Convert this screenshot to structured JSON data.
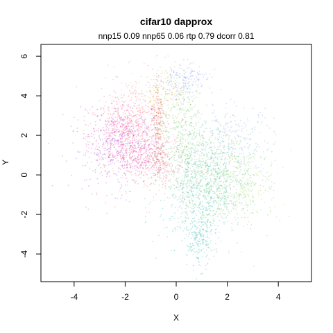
{
  "chart_data": {
    "type": "scatter",
    "title": "cifar10 dapprox",
    "subtitle": "nnp15 0.09 nnp65 0.06 rtp 0.79 dcorr 0.81",
    "xlabel": "X",
    "ylabel": "Y",
    "xlim": [
      -5.3,
      5.3
    ],
    "ylim": [
      -5.4,
      6.6
    ],
    "xticks": [
      -4,
      -2,
      0,
      2,
      4
    ],
    "yticks": [
      -4,
      -2,
      0,
      2,
      4,
      6
    ],
    "grid": false,
    "legend": "none",
    "series": [
      {
        "color": "#e8208a",
        "clusters": [
          {
            "cx": -2.0,
            "cy": 2.0,
            "sx": 0.7,
            "sy": 0.9,
            "n": 700
          },
          {
            "cx": -1.3,
            "cy": 0.8,
            "sx": 0.6,
            "sy": 0.5,
            "n": 250
          }
        ]
      },
      {
        "color": "#8a2be2",
        "clusters": [
          {
            "cx": -2.3,
            "cy": 1.2,
            "sx": 0.9,
            "sy": 1.0,
            "n": 300
          }
        ]
      },
      {
        "color": "#ff6a6a",
        "clusters": [
          {
            "cx": -1.5,
            "cy": 3.3,
            "sx": 0.8,
            "sy": 0.9,
            "n": 250
          },
          {
            "cx": -0.8,
            "cy": 0.5,
            "sx": 0.7,
            "sy": 1.0,
            "n": 200
          }
        ]
      },
      {
        "color": "#d04020",
        "clusters": [
          {
            "cx": -0.7,
            "cy": 2.8,
            "sx": 0.12,
            "sy": 1.3,
            "n": 180
          },
          {
            "cx": -0.7,
            "cy": 0.8,
            "sx": 0.2,
            "sy": 0.4,
            "n": 60
          }
        ]
      },
      {
        "color": "#c8a000",
        "clusters": [
          {
            "cx": -0.5,
            "cy": 4.2,
            "sx": 0.5,
            "sy": 0.6,
            "n": 120
          }
        ]
      },
      {
        "color": "#4fbf3f",
        "clusters": [
          {
            "cx": 0.2,
            "cy": 2.5,
            "sx": 0.4,
            "sy": 1.4,
            "n": 350
          },
          {
            "cx": 1.5,
            "cy": -0.5,
            "sx": 0.9,
            "sy": 1.1,
            "n": 350
          }
        ]
      },
      {
        "color": "#20b2aa",
        "clusters": [
          {
            "cx": 1.0,
            "cy": -1.0,
            "sx": 0.8,
            "sy": 1.2,
            "n": 600
          },
          {
            "cx": 0.9,
            "cy": -3.3,
            "sx": 0.25,
            "sy": 0.7,
            "n": 220
          }
        ]
      },
      {
        "color": "#3cb371",
        "clusters": [
          {
            "cx": 1.6,
            "cy": 0.8,
            "sx": 0.9,
            "sy": 1.0,
            "n": 400
          }
        ]
      },
      {
        "color": "#6a8cff",
        "clusters": [
          {
            "cx": 0.3,
            "cy": 4.8,
            "sx": 0.5,
            "sy": 0.4,
            "n": 150
          },
          {
            "cx": 2.2,
            "cy": 1.8,
            "sx": 0.8,
            "sy": 0.9,
            "n": 200
          }
        ]
      },
      {
        "color": "#9ad040",
        "clusters": [
          {
            "cx": 2.5,
            "cy": -0.5,
            "sx": 0.8,
            "sy": 1.0,
            "n": 250
          }
        ]
      }
    ]
  }
}
